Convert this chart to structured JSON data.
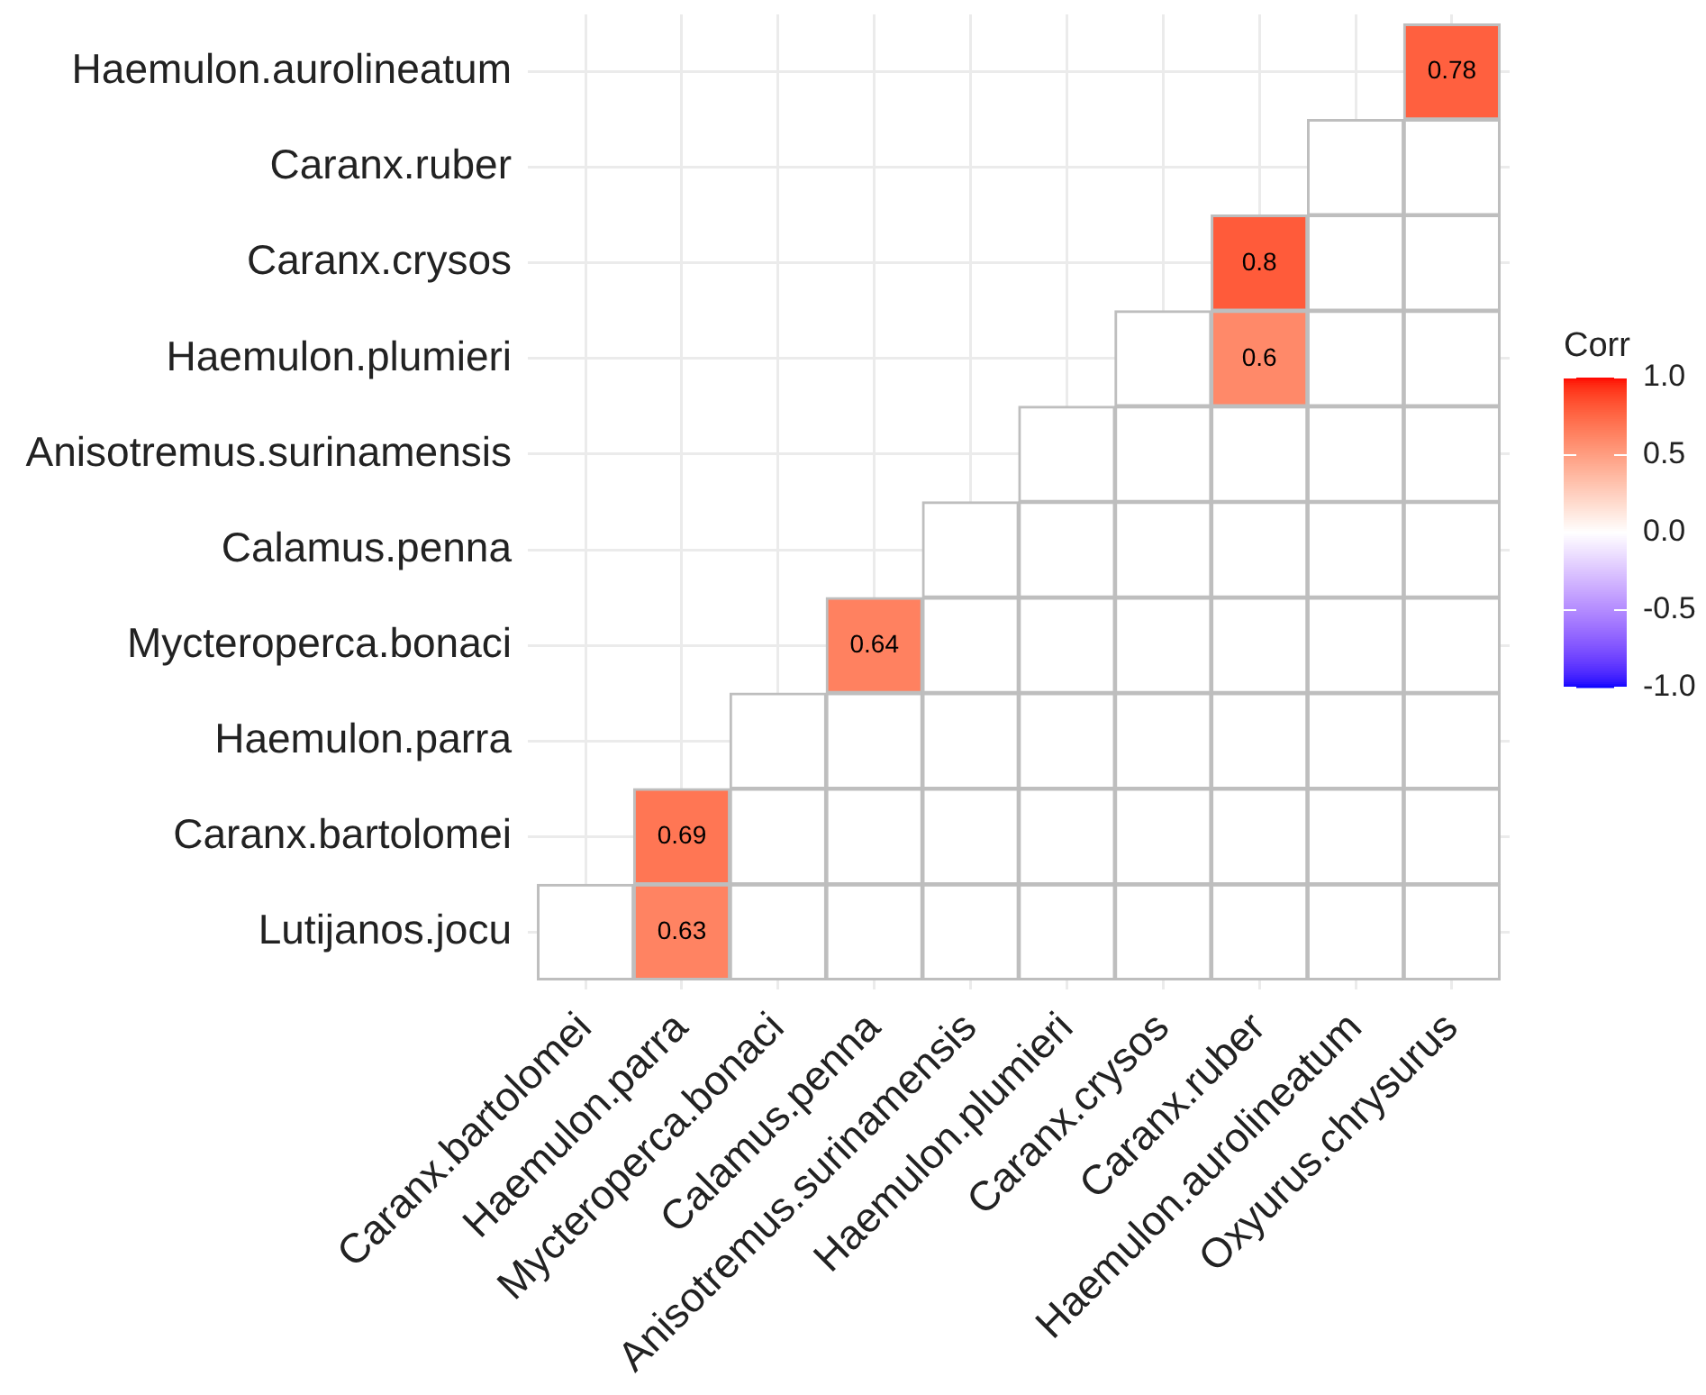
{
  "chart_data": {
    "type": "heatmap",
    "categories": [
      "Caranx.bartolomei",
      "Haemulon.parra",
      "Mycteroperca.bonaci",
      "Calamus.penna",
      "Anisotremus.surinamensis",
      "Haemulon.plumieri",
      "Caranx.crysos",
      "Caranx.ruber",
      "Haemulon.aurolineatum",
      "Oxyurus.chrysurus"
    ],
    "y_categories": [
      "Haemulon.aurolineatum",
      "Caranx.ruber",
      "Caranx.crysos",
      "Haemulon.plumieri",
      "Anisotremus.surinamensis",
      "Calamus.penna",
      "Mycteroperca.bonaci",
      "Haemulon.parra",
      "Caranx.bartolomei",
      "Lutijanos.jocu"
    ],
    "cells": [
      [
        null,
        null,
        null,
        null,
        null,
        null,
        null,
        null,
        null,
        0.78
      ],
      [
        null,
        null,
        null,
        null,
        null,
        null,
        null,
        null,
        0,
        0
      ],
      [
        null,
        null,
        null,
        null,
        null,
        null,
        null,
        0.8,
        0,
        0
      ],
      [
        null,
        null,
        null,
        null,
        null,
        null,
        0,
        0.6,
        0,
        0
      ],
      [
        null,
        null,
        null,
        null,
        null,
        0,
        0,
        0,
        0,
        0
      ],
      [
        null,
        null,
        null,
        null,
        0,
        0,
        0,
        0,
        0,
        0
      ],
      [
        null,
        null,
        null,
        0.64,
        0,
        0,
        0,
        0,
        0,
        0
      ],
      [
        null,
        null,
        0,
        0,
        0,
        0,
        0,
        0,
        0,
        0
      ],
      [
        null,
        0.69,
        0,
        0,
        0,
        0,
        0,
        0,
        0,
        0
      ],
      [
        0,
        0.63,
        0,
        0,
        0,
        0,
        0,
        0,
        0,
        0
      ]
    ],
    "cell_labels": [
      [
        null,
        null,
        null,
        null,
        null,
        null,
        null,
        null,
        null,
        "0.78"
      ],
      [
        null,
        null,
        null,
        null,
        null,
        null,
        null,
        null,
        null,
        null
      ],
      [
        null,
        null,
        null,
        null,
        null,
        null,
        null,
        "0.8",
        null,
        null
      ],
      [
        null,
        null,
        null,
        null,
        null,
        null,
        null,
        "0.6",
        null,
        null
      ],
      [
        null,
        null,
        null,
        null,
        null,
        null,
        null,
        null,
        null,
        null
      ],
      [
        null,
        null,
        null,
        null,
        null,
        null,
        null,
        null,
        null,
        null
      ],
      [
        null,
        null,
        null,
        "0.64",
        null,
        null,
        null,
        null,
        null,
        null
      ],
      [
        null,
        null,
        null,
        null,
        null,
        null,
        null,
        null,
        null,
        null
      ],
      [
        null,
        "0.69",
        null,
        null,
        null,
        null,
        null,
        null,
        null,
        null
      ],
      [
        null,
        "0.63",
        null,
        null,
        null,
        null,
        null,
        null,
        null,
        null
      ]
    ],
    "clim": [
      -1,
      1
    ],
    "cticks": [
      {
        "value": -1,
        "label": "-1.0"
      },
      {
        "value": -0.5,
        "label": "-0.5"
      },
      {
        "value": 0,
        "label": "0.0"
      },
      {
        "value": 0.5,
        "label": "0.5"
      },
      {
        "value": 1,
        "label": "1.0"
      }
    ],
    "clabel": "Corr",
    "grid": true
  }
}
